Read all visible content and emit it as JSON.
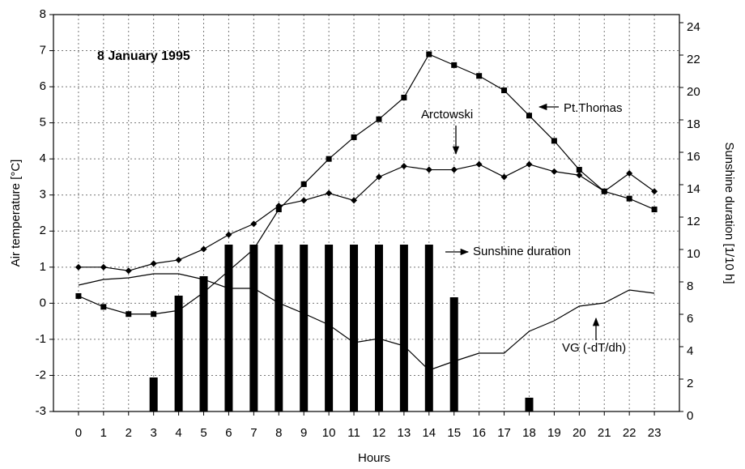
{
  "chart_data": {
    "type": "line",
    "title": "8 January 1995",
    "xlabel": "Hours",
    "ylabel": "Air temperature [°C]",
    "y2label": "Sunshine duration [1/10 h]",
    "x": [
      0,
      1,
      2,
      3,
      4,
      5,
      6,
      7,
      8,
      9,
      10,
      11,
      12,
      13,
      14,
      15,
      16,
      17,
      18,
      19,
      20,
      21,
      22,
      23
    ],
    "xlim": [
      -1,
      24
    ],
    "xticks": [
      0,
      1,
      2,
      3,
      4,
      5,
      6,
      7,
      8,
      9,
      10,
      11,
      12,
      13,
      14,
      15,
      16,
      17,
      18,
      19,
      20,
      21,
      22,
      23
    ],
    "ylim": [
      -3,
      8
    ],
    "yticks": [
      -3,
      -2,
      -1,
      0,
      1,
      2,
      3,
      4,
      5,
      6,
      7,
      8
    ],
    "y2lim": [
      0,
      24.5
    ],
    "y2ticks": [
      0,
      2,
      4,
      6,
      8,
      10,
      12,
      14,
      16,
      18,
      20,
      22,
      24
    ],
    "grid": true,
    "series": [
      {
        "name": "Sunshine duration",
        "type": "bar",
        "axis": "y2",
        "color": "#000000",
        "values": [
          null,
          null,
          null,
          2.1,
          7.15,
          8.35,
          10.3,
          10.3,
          10.3,
          10.3,
          10.3,
          10.3,
          10.3,
          10.3,
          10.3,
          7.05,
          null,
          null,
          0.85,
          null,
          null,
          null,
          null,
          null
        ]
      },
      {
        "name": "Pt.Thomas",
        "type": "line",
        "marker": "square",
        "color": "#000000",
        "values": [
          0.2,
          -0.1,
          -0.3,
          -0.3,
          -0.2,
          0.3,
          0.9,
          1.5,
          2.6,
          3.3,
          4.0,
          4.6,
          5.1,
          5.7,
          6.9,
          6.6,
          6.3,
          5.9,
          5.2,
          4.5,
          3.7,
          3.1,
          2.9,
          2.6
        ]
      },
      {
        "name": "Arctowski",
        "type": "line",
        "marker": "diamond",
        "color": "#000000",
        "values": [
          1.0,
          1.0,
          0.9,
          1.1,
          1.2,
          1.5,
          1.9,
          2.2,
          2.7,
          2.85,
          3.05,
          2.85,
          3.5,
          3.8,
          3.7,
          3.7,
          3.85,
          3.5,
          3.85,
          3.65,
          3.55,
          3.1,
          3.6,
          3.1
        ]
      },
      {
        "name": "VG (-dT/dh)",
        "type": "line",
        "axis": "y2",
        "marker": "none",
        "color": "#000000",
        "values": [
          7.8,
          8.15,
          8.25,
          8.5,
          8.5,
          8.15,
          7.6,
          7.6,
          6.7,
          6.05,
          5.35,
          4.25,
          4.5,
          4.05,
          2.55,
          3.1,
          3.6,
          3.6,
          4.95,
          5.6,
          6.5,
          6.7,
          7.5,
          7.3
        ]
      }
    ]
  }
}
